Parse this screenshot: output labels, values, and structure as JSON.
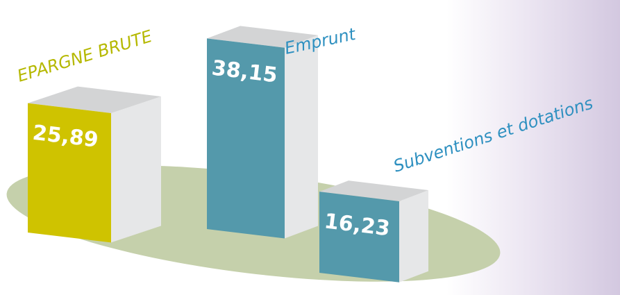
{
  "chart_data": {
    "type": "bar3d",
    "categories": [
      "EPARGNE BRUTE",
      "Emprunt",
      "Subventions et dotations"
    ],
    "values": [
      25.89,
      38.15,
      16.23
    ],
    "value_labels": [
      "25,89",
      "38,15",
      "16,23"
    ],
    "colors": [
      "#cfc300",
      "#5499ab",
      "#5499ab"
    ]
  }
}
